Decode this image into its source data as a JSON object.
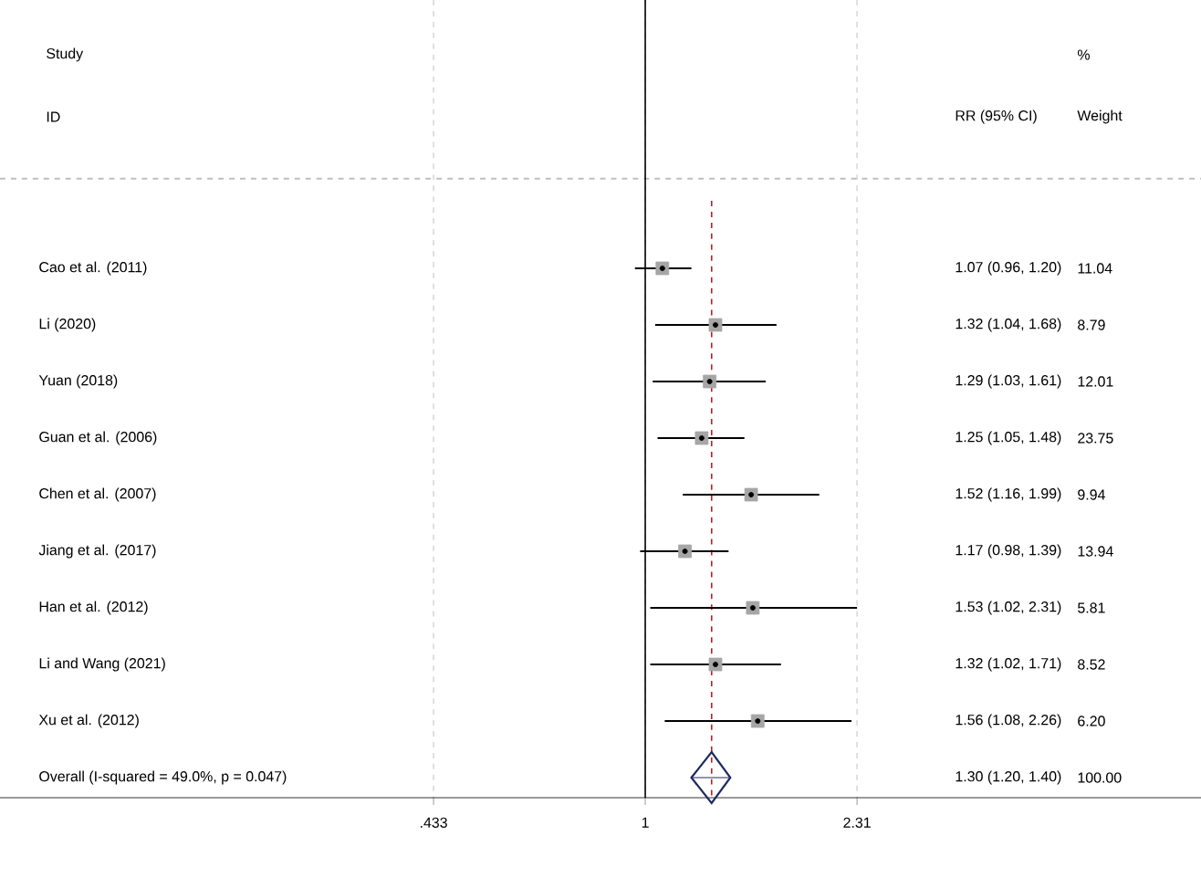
{
  "chart_data": {
    "type": "scatter",
    "orientation": "horizontal",
    "log": "x",
    "grid": "x",
    "marker": "square",
    "categories": [
      "Cao et al. (2011)",
      "Li (2020)",
      "Yuan (2018)",
      "Guan et al. (2006)",
      "Chen et al. (2007)",
      "Jiang et al. (2017)",
      "Han et al. (2012)",
      "Li and Wang (2021)",
      "Xu et al. (2012)",
      "Overall  (I-squared = 49.0%, p = 0.047)"
    ],
    "series": [
      {
        "color": "#a6a6a6",
        "values": [
          1.07,
          1.32,
          1.29,
          1.25,
          1.52,
          1.17,
          1.53,
          1.32,
          1.56,
          null
        ],
        "errors": [
          [
            0.96,
            1.2
          ],
          [
            1.04,
            1.68
          ],
          [
            1.03,
            1.61
          ],
          [
            1.05,
            1.48
          ],
          [
            1.16,
            1.99
          ],
          [
            0.98,
            1.39
          ],
          [
            1.02,
            2.31
          ],
          [
            1.02,
            1.71
          ],
          [
            1.08,
            2.26
          ],
          null
        ]
      },
      {
        "color": "#1f2a5c",
        "marker": "diamond",
        "values": [
          null,
          null,
          null,
          null,
          null,
          null,
          null,
          null,
          null,
          1.3
        ],
        "errors": [
          null,
          null,
          null,
          null,
          null,
          null,
          null,
          null,
          null,
          [
            1.2,
            1.4
          ]
        ]
      }
    ],
    "xlim": [
      0.078,
      9.0
    ],
    "xticks": [
      {
        "value": 0.433,
        "label": ".433"
      },
      {
        "value": 1,
        "label": "1"
      },
      {
        "value": 2.31,
        "label": "2.31"
      }
    ],
    "ref_lines": [
      {
        "axis": "x",
        "value": 1,
        "color": "#000000",
        "line_style": "solid"
      },
      {
        "axis": "x",
        "value": 1.3,
        "color": "#b22222",
        "line_style": "dashed"
      }
    ],
    "annotations": [
      "Study",
      "ID",
      "RR (95% CI)",
      "%",
      "Weight",
      "1.07 (0.96, 1.20)",
      "1.32 (1.04, 1.68)",
      "1.29 (1.03, 1.61)",
      "1.25 (1.05, 1.48)",
      "1.52 (1.16, 1.99)",
      "1.17 (0.98, 1.39)",
      "1.53 (1.02, 2.31)",
      "1.32 (1.02, 1.71)",
      "1.56 (1.08, 2.26)",
      "1.30 (1.20, 1.40)",
      "11.04",
      "8.79",
      "12.01",
      "23.75",
      "9.94",
      "13.94",
      "5.81",
      "8.52",
      "6.20",
      "100.00"
    ]
  }
}
